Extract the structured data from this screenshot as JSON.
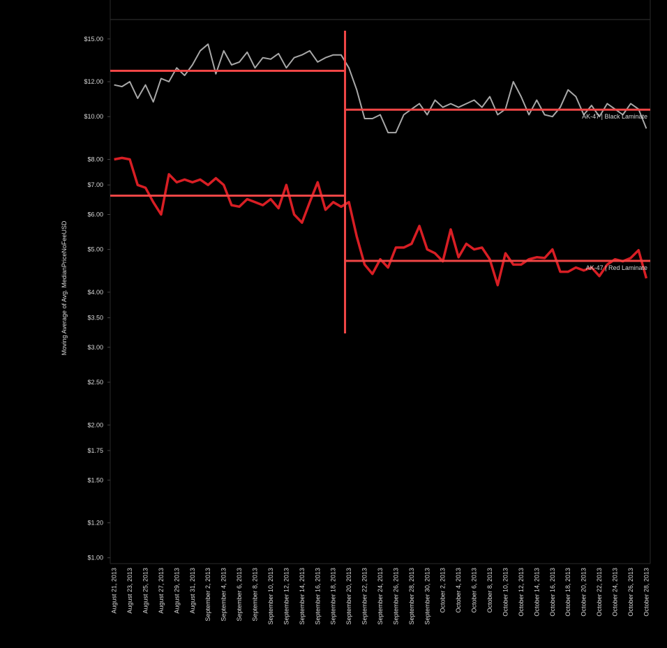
{
  "chart_data": {
    "type": "line",
    "y_label": "Moving Average of Avg. MedianPriceNoFeeUSD",
    "log_scale": true,
    "ylim": [
      0.97,
      16.6
    ],
    "yticks": [
      {
        "value": 1,
        "label": "$1.00"
      },
      {
        "value": 1.2,
        "label": "$1.20"
      },
      {
        "value": 1.5,
        "label": "$1.50"
      },
      {
        "value": 1.75,
        "label": "$1.75"
      },
      {
        "value": 2,
        "label": "$2.00"
      },
      {
        "value": 2.5,
        "label": "$2.50"
      },
      {
        "value": 3,
        "label": "$3.00"
      },
      {
        "value": 3.5,
        "label": "$3.50"
      },
      {
        "value": 4,
        "label": "$4.00"
      },
      {
        "value": 5,
        "label": "$5.00"
      },
      {
        "value": 6,
        "label": "$6.00"
      },
      {
        "value": 7,
        "label": "$7.00"
      },
      {
        "value": 8,
        "label": "$8.00"
      },
      {
        "value": 10,
        "label": "$10.00"
      },
      {
        "value": 12,
        "label": "$12.00"
      },
      {
        "value": 15,
        "label": "$15.00"
      }
    ],
    "categories": [
      "August 21, 2013",
      null,
      "August 23, 2013",
      null,
      "August 25, 2013",
      null,
      "August 27, 2013",
      null,
      "August 29, 2013",
      null,
      "August 31, 2013",
      null,
      "September 2, 2013",
      null,
      "September 4, 2013",
      null,
      "September 6, 2013",
      null,
      "September 8, 2013",
      null,
      "September 10, 2013",
      null,
      "September 12, 2013",
      null,
      "September 14, 2013",
      null,
      "September 16, 2013",
      null,
      "September 18, 2013",
      null,
      "September 20, 2013",
      null,
      "September 22, 2013",
      null,
      "September 24, 2013",
      null,
      "September 26, 2013",
      null,
      "September 28, 2013",
      null,
      "September 30, 2013",
      null,
      "October 2, 2013",
      null,
      "October 4, 2013",
      null,
      "October 6, 2013",
      null,
      "October 8, 2013",
      null,
      "October 10, 2013",
      null,
      "October 12, 2013",
      null,
      "October 14, 2013",
      null,
      "October 16, 2013",
      null,
      "October 18, 2013",
      null,
      "October 20, 2013",
      null,
      "October 22, 2013",
      null,
      "October 24, 2013",
      null,
      "October 26, 2013",
      null,
      "October 28, 2013"
    ],
    "split_at": "September 20, 2013",
    "reference_color": "#f04646",
    "series": [
      {
        "name": "AK-47 | Black Laminate",
        "color": "#a8a8a8",
        "mean_before": 12.7,
        "mean_after": 10.37,
        "values": [
          11.8,
          11.7,
          12.0,
          11.0,
          11.8,
          10.8,
          12.2,
          12.0,
          12.9,
          12.4,
          13.1,
          14.1,
          14.6,
          12.5,
          14.1,
          13.1,
          13.3,
          14.0,
          12.9,
          13.6,
          13.5,
          13.9,
          12.9,
          13.6,
          13.8,
          14.1,
          13.3,
          13.6,
          13.8,
          13.8,
          12.9,
          11.5,
          9.9,
          9.9,
          10.1,
          9.2,
          9.2,
          10.1,
          10.4,
          10.7,
          10.1,
          10.9,
          10.5,
          10.7,
          10.5,
          10.7,
          10.9,
          10.5,
          11.1,
          10.1,
          10.4,
          12.0,
          11.1,
          10.1,
          10.9,
          10.1,
          10.0,
          10.5,
          11.5,
          11.1,
          10.1,
          10.6,
          10.0,
          10.7,
          10.4,
          10.1,
          10.7,
          10.4,
          9.4
        ]
      },
      {
        "name": "AK-47 | Red Laminate",
        "color": "#d81e24",
        "mean_before": 6.62,
        "mean_after": 4.71,
        "values": [
          8.0,
          8.06,
          8.0,
          7.0,
          6.9,
          6.4,
          6.0,
          7.4,
          7.1,
          7.2,
          7.1,
          7.2,
          7.0,
          7.25,
          7.0,
          6.3,
          6.25,
          6.5,
          6.4,
          6.3,
          6.5,
          6.2,
          7.0,
          6.0,
          5.75,
          6.4,
          7.1,
          6.15,
          6.4,
          6.25,
          6.4,
          5.35,
          4.62,
          4.4,
          4.75,
          4.55,
          5.05,
          5.05,
          5.15,
          5.65,
          5.0,
          4.9,
          4.7,
          5.55,
          4.8,
          5.15,
          5.0,
          5.05,
          4.75,
          4.15,
          4.9,
          4.62,
          4.62,
          4.75,
          4.8,
          4.78,
          5.0,
          4.45,
          4.45,
          4.55,
          4.48,
          4.55,
          4.35,
          4.62,
          4.75,
          4.7,
          4.78,
          4.98,
          4.3
        ]
      }
    ]
  }
}
